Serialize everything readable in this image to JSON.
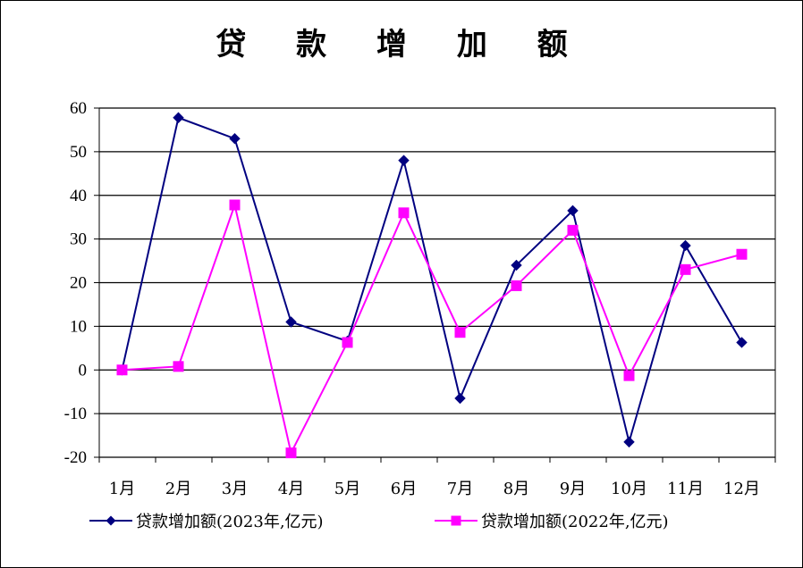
{
  "chart_data": {
    "type": "line",
    "title": "贷 款 增 加 额",
    "categories": [
      "1月",
      "2月",
      "3月",
      "4月",
      "5月",
      "6月",
      "7月",
      "8月",
      "9月",
      "10月",
      "11月",
      "12月"
    ],
    "ylim": [
      -20,
      60
    ],
    "yticks": [
      60,
      50,
      40,
      30,
      20,
      10,
      0,
      -10,
      -20
    ],
    "grid": true,
    "legend_position": "bottom",
    "series": [
      {
        "name": "贷款增加额(2023年,亿元)",
        "color": "#000080",
        "marker": "diamond",
        "values": [
          0,
          57.8,
          53,
          11,
          6.6,
          48,
          -6.5,
          24,
          36.5,
          -16.5,
          28.5,
          6.3
        ]
      },
      {
        "name": "贷款增加额(2022年,亿元)",
        "color": "#FF00FF",
        "marker": "square",
        "values": [
          0,
          0.8,
          37.8,
          -19,
          6.3,
          36,
          8.6,
          19.3,
          32,
          -1.3,
          23,
          26.5
        ]
      }
    ]
  }
}
